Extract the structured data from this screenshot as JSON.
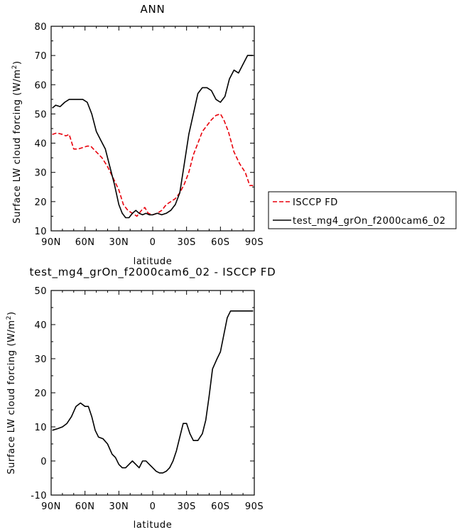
{
  "chart_data": [
    {
      "type": "line",
      "title": "ANN",
      "xlabel": "latitude",
      "ylabel_main": "Surface LW cloud forcing (W/m",
      "ylabel_sup": "2",
      "ylabel_close": ")",
      "xlim": [
        -90,
        90
      ],
      "ylim": [
        10,
        80
      ],
      "xticks": [
        -90,
        -60,
        -30,
        0,
        30,
        60,
        90
      ],
      "xticklabels": [
        "90N",
        "60N",
        "30N",
        "0",
        "30S",
        "60S",
        "90S"
      ],
      "yticks": [
        10,
        20,
        30,
        40,
        50,
        60,
        70,
        80
      ],
      "yticklabels": [
        "10",
        "20",
        "30",
        "40",
        "50",
        "60",
        "70",
        "80"
      ],
      "legend_placement": "right",
      "series": [
        {
          "name": "ISCCP FD",
          "color": "#e8000b",
          "dash": "dashed",
          "x": [
            -89,
            -85,
            -80,
            -77,
            -74,
            -70,
            -66,
            -62,
            -58,
            -55,
            -50,
            -45,
            -40,
            -35,
            -30,
            -26,
            -22,
            -18,
            -14,
            -10,
            -7,
            -4,
            0,
            4,
            8,
            12,
            16,
            20,
            24,
            28,
            32,
            36,
            40,
            44,
            48,
            52,
            56,
            60,
            63,
            67,
            72,
            77,
            82,
            86,
            89
          ],
          "y": [
            43,
            43.5,
            43,
            42.5,
            43,
            38,
            38,
            38.5,
            39,
            39,
            37,
            35,
            32,
            28,
            24,
            19,
            17,
            16,
            15,
            17,
            18,
            16,
            15.5,
            16,
            17,
            19,
            20,
            21,
            23,
            26,
            30,
            36,
            40,
            44,
            46,
            48,
            49.5,
            50,
            48,
            44,
            37,
            33,
            30,
            25.5,
            25.5
          ]
        },
        {
          "name": "test_mg4_grOn_f2000cam6_02",
          "color": "#000000",
          "dash": "solid",
          "x": [
            -89,
            -86,
            -82,
            -78,
            -74,
            -70,
            -66,
            -62,
            -58,
            -54,
            -50,
            -46,
            -42,
            -38,
            -34,
            -30,
            -27,
            -24,
            -21,
            -18,
            -15,
            -12,
            -9,
            -6,
            -3,
            0,
            4,
            8,
            12,
            16,
            20,
            24,
            28,
            32,
            36,
            40,
            44,
            48,
            52,
            56,
            60,
            64,
            68,
            72,
            76,
            80,
            84,
            87,
            89
          ],
          "y": [
            52,
            53,
            52.5,
            54,
            55,
            55,
            55,
            55,
            54,
            50,
            44,
            41,
            38,
            32,
            26,
            19,
            16,
            14.5,
            14.5,
            16,
            17,
            16,
            15.5,
            16,
            15.5,
            15.5,
            16,
            15.5,
            16,
            17,
            19,
            23,
            33,
            43,
            50,
            57,
            59,
            59,
            58,
            55,
            54,
            56,
            62,
            65,
            64,
            67,
            70,
            70,
            70
          ]
        }
      ]
    },
    {
      "type": "line",
      "title": "test_mg4_grOn_f2000cam6_02 - ISCCP FD",
      "xlabel": "latitude",
      "ylabel_main": "Surface LW cloud forcing (W/m",
      "ylabel_sup": "2",
      "ylabel_close": ")",
      "xlim": [
        -90,
        90
      ],
      "ylim": [
        -10,
        50
      ],
      "xticks": [
        -90,
        -60,
        -30,
        0,
        30,
        60,
        90
      ],
      "xticklabels": [
        "90N",
        "60N",
        "30N",
        "0",
        "30S",
        "60S",
        "90S"
      ],
      "yticks": [
        -10,
        0,
        10,
        20,
        30,
        40,
        50
      ],
      "yticklabels": [
        "-10",
        "0",
        "10",
        "20",
        "30",
        "40",
        "50"
      ],
      "series": [
        {
          "color": "#000000",
          "dash": "solid",
          "x": [
            -89,
            -84,
            -80,
            -76,
            -72,
            -68,
            -64,
            -60,
            -57,
            -54,
            -51,
            -48,
            -44,
            -40,
            -36,
            -33,
            -30,
            -27,
            -24,
            -21,
            -18,
            -15,
            -12,
            -9,
            -6,
            -3,
            0,
            3,
            6,
            9,
            12,
            15,
            18,
            21,
            24,
            27,
            30,
            33,
            36,
            40,
            44,
            47,
            50,
            53,
            57,
            60,
            63,
            66,
            69,
            72,
            75,
            78,
            80,
            84,
            87,
            89
          ],
          "y": [
            9,
            9.5,
            10,
            11,
            13,
            16,
            17,
            16,
            16,
            13,
            9,
            7,
            6.5,
            5,
            2,
            1,
            -1,
            -2,
            -2,
            -1,
            0,
            -1,
            -2,
            0,
            0,
            -1,
            -2,
            -3,
            -3.5,
            -3.5,
            -3,
            -2,
            0,
            3,
            7,
            11,
            11,
            8,
            6,
            6,
            8,
            12,
            19,
            27,
            30,
            32,
            37,
            42,
            44,
            44,
            44,
            44,
            44,
            44,
            44,
            44
          ]
        }
      ]
    }
  ]
}
